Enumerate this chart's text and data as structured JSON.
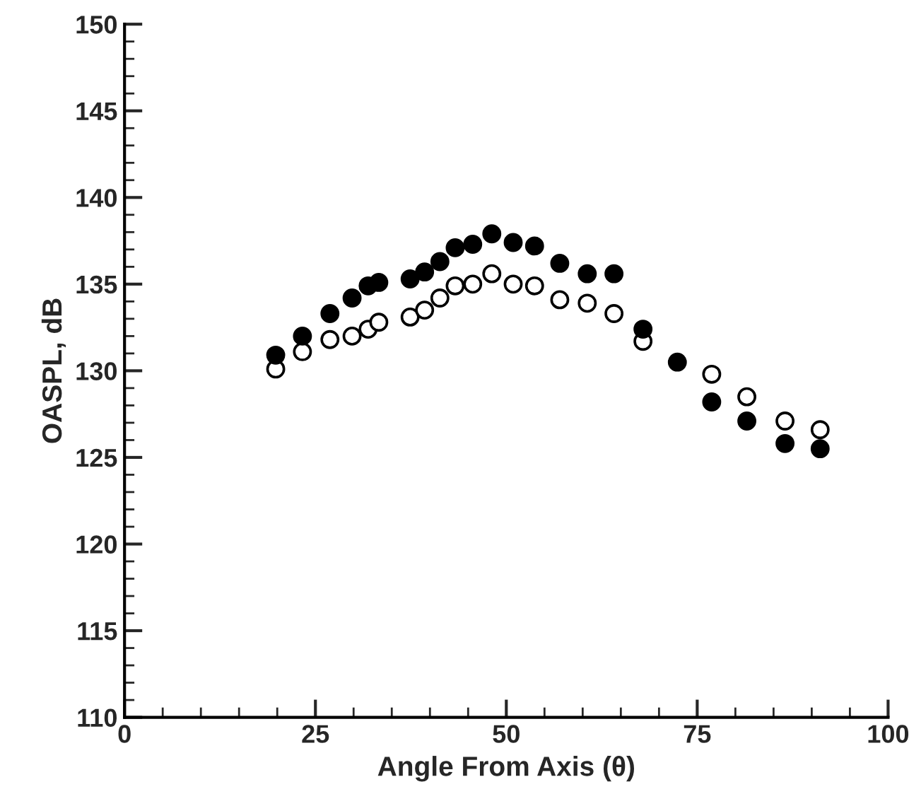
{
  "chart_data": {
    "type": "scatter",
    "xlabel": "Angle From Axis (θ)",
    "ylabel": "OASPL, dB",
    "xlim": [
      0,
      100
    ],
    "xticks": [
      0,
      25,
      50,
      75,
      100
    ],
    "ylim": [
      110,
      150
    ],
    "yticks": [
      110,
      115,
      120,
      125,
      130,
      135,
      140,
      145,
      150
    ],
    "grid": false,
    "legend": false,
    "marker": "circle",
    "series": [
      {
        "color": "#ffffff",
        "x": [
          19.8,
          23.3,
          26.9,
          29.8,
          31.9,
          33.3,
          37.4,
          39.3,
          41.3,
          43.3,
          45.6,
          48.1,
          50.9,
          53.7,
          57.0,
          60.6,
          64.1,
          67.9,
          72.4,
          76.9,
          81.5,
          86.5,
          91.1
        ],
        "values": [
          130.1,
          131.1,
          131.8,
          132.0,
          132.4,
          132.8,
          133.1,
          133.5,
          134.2,
          134.9,
          135.0,
          135.6,
          135.0,
          134.9,
          134.1,
          133.9,
          133.3,
          131.7,
          null,
          129.8,
          128.5,
          127.1,
          126.6
        ]
      },
      {
        "color": "#000000",
        "x": [
          19.8,
          23.3,
          26.9,
          29.8,
          31.9,
          33.3,
          37.4,
          39.3,
          41.3,
          43.3,
          45.6,
          48.1,
          50.9,
          53.7,
          57.0,
          60.6,
          64.1,
          67.9,
          72.4,
          76.9,
          81.5,
          86.5,
          91.1
        ],
        "values": [
          130.9,
          132.0,
          133.3,
          134.2,
          134.9,
          135.1,
          135.3,
          135.7,
          136.3,
          137.1,
          137.3,
          137.9,
          137.4,
          137.2,
          136.2,
          135.6,
          135.6,
          132.4,
          130.5,
          128.2,
          127.1,
          125.8,
          125.5
        ]
      }
    ]
  }
}
